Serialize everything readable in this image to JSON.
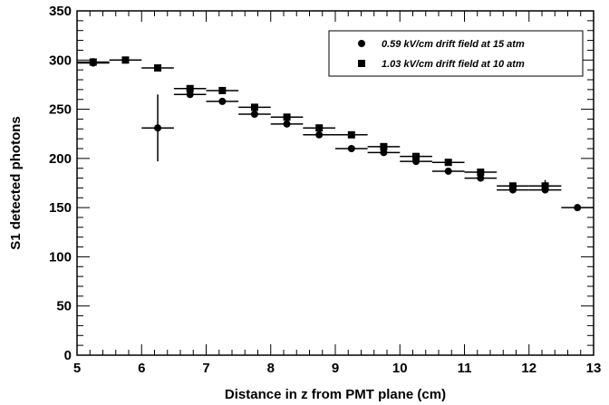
{
  "chart_data": {
    "type": "scatter",
    "title": "",
    "xlabel": "Distance in z from PMT plane (cm)",
    "ylabel": "S1 detected photons",
    "xlim": [
      5,
      13
    ],
    "ylim": [
      0,
      350
    ],
    "x_major_ticks": [
      5,
      6,
      7,
      8,
      9,
      10,
      11,
      12,
      13
    ],
    "y_major_ticks": [
      0,
      50,
      100,
      150,
      200,
      250,
      300,
      350
    ],
    "grid": false,
    "legend_position": "top-right",
    "series": [
      {
        "name": "0.59 kV/cm drift field at 15 atm",
        "marker": "circle",
        "color": "#000000",
        "x": [
          5.25,
          6.25,
          6.75,
          7.25,
          7.75,
          8.25,
          8.75,
          9.25,
          9.75,
          10.25,
          10.75,
          11.25,
          11.75,
          12.25,
          12.75
        ],
        "y": [
          297,
          231,
          265,
          258,
          245,
          235,
          224,
          210,
          206,
          197,
          187,
          180,
          168,
          168,
          150
        ],
        "yerr": [
          3,
          34,
          3,
          3,
          3,
          3,
          3,
          3,
          3,
          3,
          3,
          3,
          3,
          3,
          3
        ],
        "xerr": 0.25
      },
      {
        "name": "1.03 kV/cm drift field at 10 atm",
        "marker": "square",
        "color": "#000000",
        "x": [
          5.25,
          5.75,
          6.25,
          6.75,
          7.25,
          7.75,
          8.25,
          8.75,
          9.25,
          9.75,
          10.25,
          10.75,
          11.25,
          11.75,
          12.25
        ],
        "y": [
          298,
          300,
          292,
          271,
          269,
          252,
          242,
          231,
          224,
          212,
          202,
          196,
          186,
          172,
          172
        ],
        "yerr": [
          4,
          3,
          3,
          3,
          3,
          3,
          3,
          3,
          3,
          3,
          3,
          3,
          3,
          3,
          6
        ],
        "xerr": 0.25
      }
    ]
  }
}
